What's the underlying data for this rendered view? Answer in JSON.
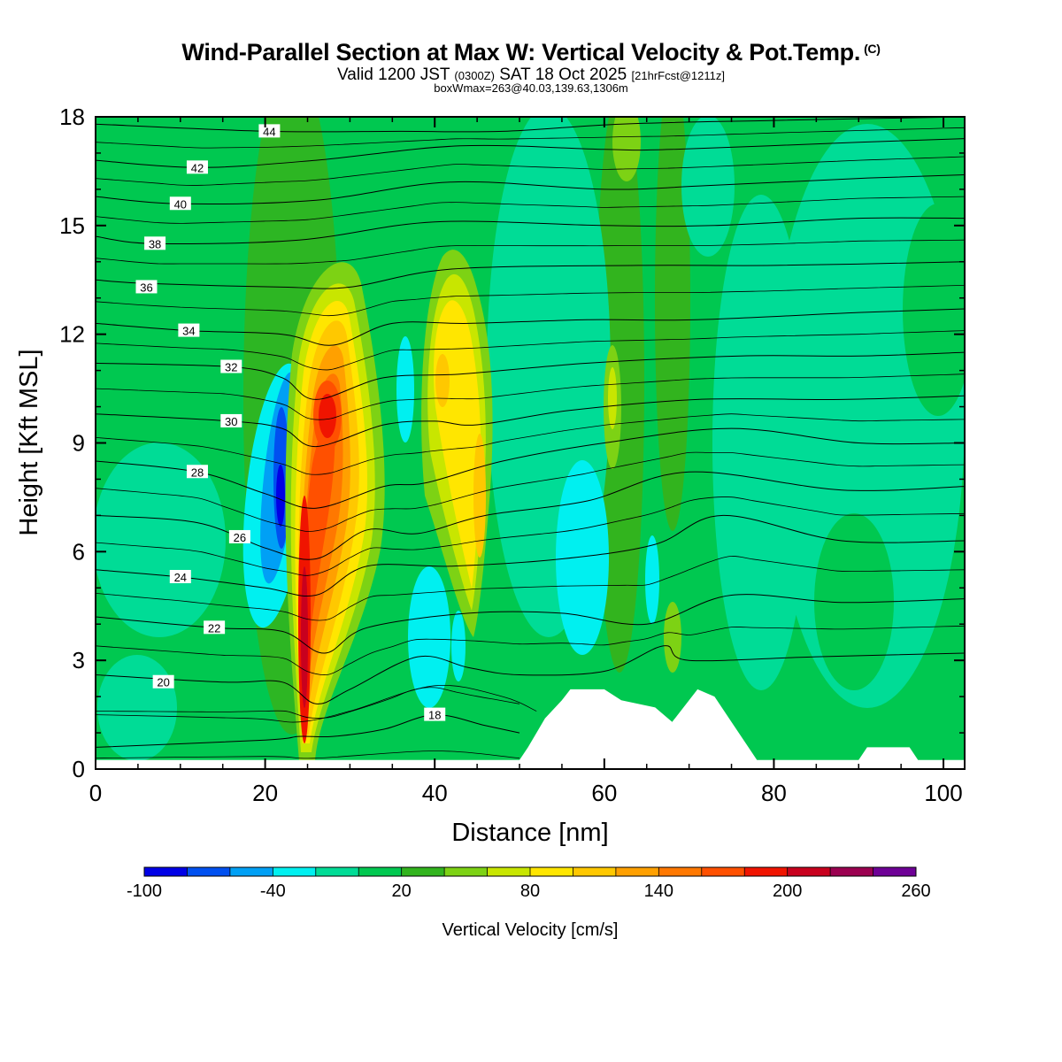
{
  "title": {
    "main": "Wind-Parallel Section at Max W: Vertical Velocity & Pot.Temp.",
    "copyright": "(C)",
    "valid_prefix": "Valid 1200 JST",
    "valid_utc": "(0300Z)",
    "valid_date": "SAT 18 Oct 2025",
    "forecast": "[21hrFcst@1211z]",
    "box_info": "boxWmax=263@40.03,139.63,1306m"
  },
  "chart_data": {
    "type": "heatmap",
    "xlabel": "Distance [nm]",
    "ylabel": "Height [Kft MSL]",
    "xlim": [
      0,
      102.5
    ],
    "ylim": [
      0,
      18
    ],
    "x_ticks": [
      0,
      20,
      40,
      60,
      80,
      100
    ],
    "y_ticks": [
      0,
      3,
      6,
      9,
      12,
      15,
      18
    ],
    "colorbar": {
      "label": "Vertical Velocity [cm/s]",
      "tick_labels": [
        "-100",
        "-40",
        "20",
        "80",
        "140",
        "200",
        "260"
      ],
      "tick_values": [
        -100,
        -40,
        20,
        80,
        140,
        200,
        260
      ],
      "colors": [
        "#0000e6",
        "#0050f0",
        "#00a0f5",
        "#00f0f0",
        "#00dc96",
        "#00c850",
        "#32b41e",
        "#7dd214",
        "#c8e600",
        "#ffe600",
        "#ffc800",
        "#ffa000",
        "#ff7800",
        "#ff5000",
        "#f01400",
        "#c8001e",
        "#9b0050",
        "#6e0096"
      ]
    },
    "terrain_kft": [
      [
        0,
        0.25
      ],
      [
        50,
        0.25
      ],
      [
        51,
        0.6
      ],
      [
        52,
        1.0
      ],
      [
        53,
        1.4
      ],
      [
        55,
        1.9
      ],
      [
        56,
        2.2
      ],
      [
        60,
        2.2
      ],
      [
        62,
        1.9
      ],
      [
        66,
        1.7
      ],
      [
        68,
        1.3
      ],
      [
        70,
        1.9
      ],
      [
        71,
        2.2
      ],
      [
        73,
        2.0
      ],
      [
        75,
        1.3
      ],
      [
        77,
        0.6
      ],
      [
        78,
        0.25
      ],
      [
        90,
        0.25
      ],
      [
        91,
        0.6
      ],
      [
        96,
        0.6
      ],
      [
        97,
        0.25
      ],
      [
        102.5,
        0.25
      ]
    ],
    "theta_contours": [
      {
        "label": "18",
        "label_at": [
          40,
          1.5
        ],
        "points": [
          [
            0,
            0.6
          ],
          [
            20,
            0.8
          ],
          [
            24,
            0.9
          ],
          [
            28,
            0.9
          ],
          [
            34,
            1.1
          ],
          [
            40,
            1.5
          ],
          [
            46,
            1.2
          ],
          [
            50,
            1.0
          ]
        ]
      },
      {
        "label": "20",
        "label_at": [
          8,
          2.4
        ],
        "points": [
          [
            0,
            2.6
          ],
          [
            15,
            2.4
          ],
          [
            22,
            2.4
          ],
          [
            26,
            1.8
          ],
          [
            30,
            2.2
          ],
          [
            38,
            3.1
          ],
          [
            44,
            2.8
          ],
          [
            50,
            2.6
          ],
          [
            60,
            2.7
          ],
          [
            67,
            3.4
          ],
          [
            70,
            3.0
          ],
          [
            85,
            3.1
          ],
          [
            102.5,
            3.2
          ]
        ]
      },
      {
        "label": "22",
        "label_at": [
          14,
          3.9
        ],
        "points": [
          [
            0,
            4.2
          ],
          [
            14,
            3.9
          ],
          [
            22,
            3.8
          ],
          [
            27,
            3.2
          ],
          [
            32,
            3.9
          ],
          [
            44,
            4.3
          ],
          [
            55,
            4.3
          ],
          [
            65,
            4.0
          ],
          [
            75,
            4.8
          ],
          [
            88,
            4.6
          ],
          [
            102.5,
            4.7
          ]
        ]
      },
      {
        "label": "24",
        "label_at": [
          10,
          5.3
        ],
        "points": [
          [
            0,
            5.5
          ],
          [
            10,
            5.3
          ],
          [
            20,
            5.0
          ],
          [
            26,
            4.8
          ],
          [
            32,
            5.6
          ],
          [
            42,
            5.6
          ],
          [
            55,
            5.8
          ],
          [
            66,
            6.2
          ],
          [
            74,
            7.0
          ],
          [
            88,
            6.3
          ],
          [
            102.5,
            6.3
          ]
        ]
      },
      {
        "label": "26",
        "label_at": [
          17,
          6.4
        ],
        "points": [
          [
            0,
            7.0
          ],
          [
            12,
            6.8
          ],
          [
            20,
            6.1
          ],
          [
            26,
            5.8
          ],
          [
            32,
            6.6
          ],
          [
            38,
            6.5
          ],
          [
            46,
            7.0
          ],
          [
            58,
            7.4
          ],
          [
            70,
            8.2
          ],
          [
            88,
            7.7
          ],
          [
            102.5,
            7.8
          ]
        ]
      },
      {
        "label": "28",
        "label_at": [
          12,
          8.2
        ],
        "points": [
          [
            0,
            8.5
          ],
          [
            12,
            8.2
          ],
          [
            20,
            7.6
          ],
          [
            26,
            7.2
          ],
          [
            34,
            7.8
          ],
          [
            39,
            7.9
          ],
          [
            48,
            8.5
          ],
          [
            60,
            9.0
          ],
          [
            75,
            9.4
          ],
          [
            90,
            9.0
          ],
          [
            102.5,
            9.0
          ]
        ]
      },
      {
        "label": "30",
        "label_at": [
          16,
          9.6
        ],
        "points": [
          [
            0,
            9.8
          ],
          [
            16,
            9.6
          ],
          [
            22,
            9.4
          ],
          [
            26,
            8.9
          ],
          [
            34,
            9.5
          ],
          [
            40,
            9.6
          ],
          [
            45,
            9.5
          ],
          [
            56,
            9.9
          ],
          [
            71,
            10.2
          ],
          [
            88,
            10.2
          ],
          [
            102.5,
            10.3
          ]
        ]
      },
      {
        "label": "32",
        "label_at": [
          16,
          11.1
        ],
        "points": [
          [
            0,
            11.2
          ],
          [
            16,
            11.1
          ],
          [
            22,
            10.8
          ],
          [
            26,
            10.2
          ],
          [
            34,
            10.8
          ],
          [
            43,
            10.9
          ],
          [
            58,
            11.2
          ],
          [
            76,
            11.4
          ],
          [
            90,
            11.4
          ],
          [
            102.5,
            11.5
          ]
        ]
      },
      {
        "label": "34",
        "label_at": [
          11,
          12.1
        ],
        "points": [
          [
            0,
            12.3
          ],
          [
            11,
            12.1
          ],
          [
            22,
            12.0
          ],
          [
            28,
            11.7
          ],
          [
            35,
            12.3
          ],
          [
            44,
            12.3
          ],
          [
            58,
            12.4
          ],
          [
            71,
            12.4
          ],
          [
            90,
            12.6
          ],
          [
            102.5,
            12.7
          ]
        ]
      },
      {
        "label": "36",
        "label_at": [
          6,
          13.3
        ],
        "points": [
          [
            0,
            13.5
          ],
          [
            6,
            13.4
          ],
          [
            22,
            13.3
          ],
          [
            30,
            13.3
          ],
          [
            42,
            13.8
          ],
          [
            64,
            13.9
          ],
          [
            80,
            13.9
          ],
          [
            102.5,
            14.0
          ]
        ]
      },
      {
        "label": "38",
        "label_at": [
          7,
          14.5
        ],
        "points": [
          [
            0,
            14.7
          ],
          [
            7,
            14.5
          ],
          [
            24,
            14.6
          ],
          [
            40,
            15.1
          ],
          [
            60,
            15.0
          ],
          [
            73,
            15.0
          ],
          [
            90,
            15.2
          ],
          [
            102.5,
            15.2
          ]
        ]
      },
      {
        "label": "40",
        "label_at": [
          10,
          15.6
        ],
        "points": [
          [
            0,
            15.8
          ],
          [
            10,
            15.6
          ],
          [
            26,
            15.7
          ],
          [
            42,
            16.2
          ],
          [
            60,
            16.0
          ],
          [
            72,
            16.1
          ],
          [
            90,
            16.3
          ],
          [
            102.5,
            16.4
          ]
        ]
      },
      {
        "label": "42",
        "label_at": [
          12,
          16.6
        ],
        "points": [
          [
            0,
            16.8
          ],
          [
            12,
            16.6
          ],
          [
            26,
            16.8
          ],
          [
            43,
            17.2
          ],
          [
            60,
            17.1
          ],
          [
            68,
            17.1
          ],
          [
            90,
            17.3
          ],
          [
            102.5,
            17.4
          ]
        ]
      },
      {
        "label": "44",
        "label_at": [
          20.5,
          17.6
        ],
        "points": [
          [
            0,
            17.8
          ],
          [
            20.5,
            17.6
          ],
          [
            36,
            17.6
          ],
          [
            48,
            17.6
          ],
          [
            62,
            17.8
          ],
          [
            80,
            17.9
          ],
          [
            102.5,
            18.0
          ]
        ]
      }
    ]
  }
}
